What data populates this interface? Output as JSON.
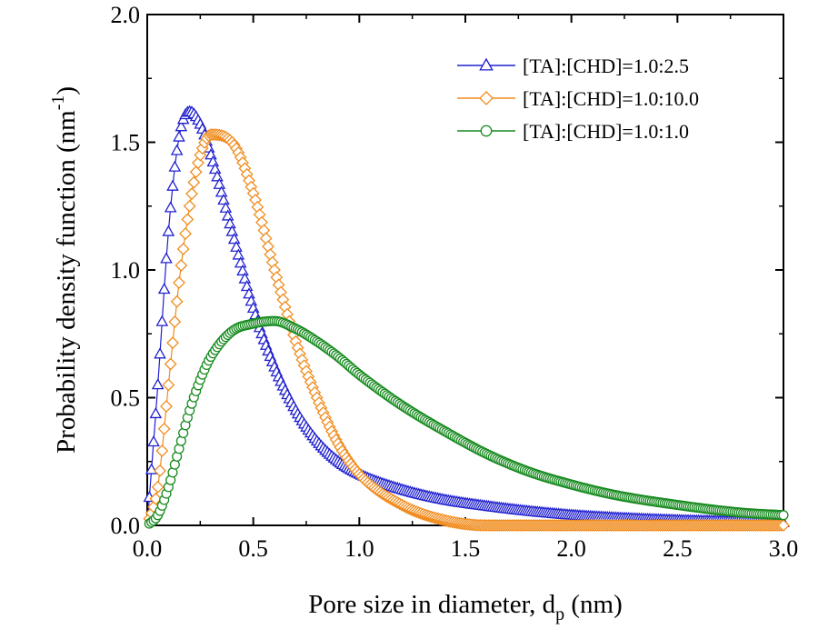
{
  "chart_data": {
    "type": "line",
    "title": "",
    "xlabel": "Pore size in diameter, d",
    "xlabel_sub": "p",
    "xlabel_suffix": " (nm)",
    "ylabel": "Probability density function (nm",
    "ylabel_sup": "-1",
    "ylabel_suffix": ")",
    "xlim": [
      0.0,
      3.0
    ],
    "ylim": [
      0.0,
      2.0
    ],
    "xticks": [
      "0.0",
      "0.5",
      "1.0",
      "1.5",
      "2.0",
      "2.5",
      "3.0"
    ],
    "yticks": [
      "0.0",
      "0.5",
      "1.0",
      "1.5",
      "2.0"
    ],
    "xtick_values": [
      0.0,
      0.5,
      1.0,
      1.5,
      2.0,
      2.5,
      3.0
    ],
    "ytick_values": [
      0.0,
      0.5,
      1.0,
      1.5,
      2.0
    ],
    "legend_position": "top-right",
    "x_sample": [
      0.0,
      0.05,
      0.1,
      0.15,
      0.2,
      0.25,
      0.3,
      0.4,
      0.5,
      0.6,
      0.7,
      0.8,
      0.9,
      1.0,
      1.2,
      1.4,
      1.6,
      1.8,
      2.0,
      2.2,
      2.5,
      2.8,
      3.0
    ],
    "series": [
      {
        "name": "[TA]:[CHD]=1.0:2.5",
        "color": "#2020d0",
        "marker": "triangle",
        "peak_x": 0.22,
        "peak_y": 1.62,
        "values": [
          0.0,
          0.55,
          1.15,
          1.52,
          1.62,
          1.57,
          1.45,
          1.15,
          0.85,
          0.62,
          0.45,
          0.33,
          0.25,
          0.2,
          0.14,
          0.1,
          0.075,
          0.055,
          0.04,
          0.03,
          0.02,
          0.015,
          0.01
        ]
      },
      {
        "name": "[TA]:[CHD]=1.0:10.0",
        "color": "#f08c1e",
        "marker": "diamond",
        "peak_x": 0.37,
        "peak_y": 1.56,
        "values": [
          0.0,
          0.15,
          0.55,
          0.95,
          1.25,
          1.45,
          1.53,
          1.5,
          1.3,
          1.0,
          0.72,
          0.5,
          0.32,
          0.2,
          0.08,
          0.02,
          0.0,
          0.0,
          0.0,
          0.0,
          0.0,
          0.0,
          0.0
        ]
      },
      {
        "name": "[TA]:[CHD]=1.0:1.0",
        "color": "#168a1e",
        "marker": "circle",
        "peak_x": 0.55,
        "peak_y": 0.8,
        "values": [
          0.0,
          0.04,
          0.15,
          0.3,
          0.45,
          0.57,
          0.66,
          0.76,
          0.79,
          0.8,
          0.77,
          0.72,
          0.66,
          0.59,
          0.47,
          0.37,
          0.28,
          0.21,
          0.16,
          0.12,
          0.08,
          0.05,
          0.04
        ]
      }
    ]
  }
}
